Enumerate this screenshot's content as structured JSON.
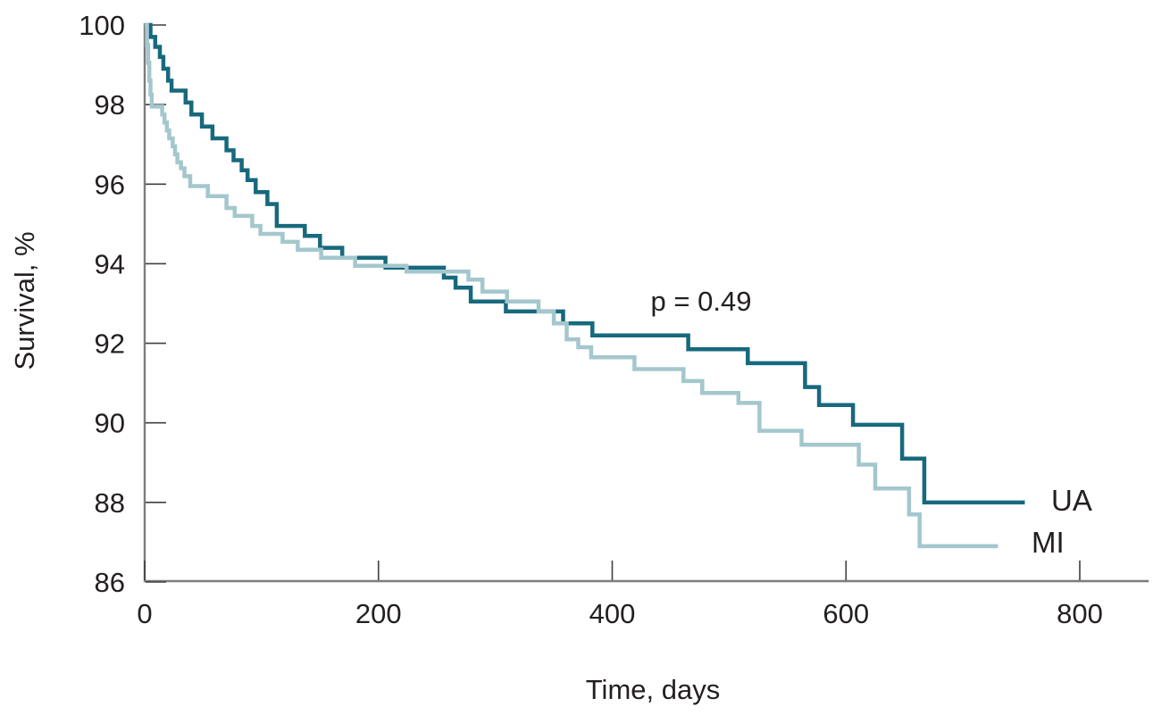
{
  "figure": {
    "background": "#ffffff",
    "text_color": "#231f20",
    "axis_color": "#7d7d7d",
    "tick_color": "#3f3f3f"
  },
  "chart_data": {
    "type": "line",
    "subtype": "kaplan-meier-step",
    "title": "",
    "xlabel": "Time, days",
    "ylabel": "Survival, %",
    "xlim": [
      0,
      859
    ],
    "ylim": [
      86,
      100
    ],
    "x_ticks": [
      0,
      200,
      400,
      600,
      800
    ],
    "y_ticks": [
      100,
      98,
      96,
      94,
      92,
      90,
      88,
      86
    ],
    "grid": false,
    "legend_position": "right-end-of-lines",
    "annotation": {
      "text": "p = 0.49",
      "x_day": 476,
      "y_pct": 93.0
    },
    "series": [
      {
        "name": "UA",
        "color": "#17697d",
        "final_value": 88.0,
        "points": [
          [
            0,
            100
          ],
          [
            5,
            99.7
          ],
          [
            9,
            99.45
          ],
          [
            13,
            99.2
          ],
          [
            16,
            98.9
          ],
          [
            20,
            98.6
          ],
          [
            23,
            98.35
          ],
          [
            35,
            98.05
          ],
          [
            40,
            97.75
          ],
          [
            49,
            97.45
          ],
          [
            58,
            97.15
          ],
          [
            70,
            96.85
          ],
          [
            76,
            96.6
          ],
          [
            83,
            96.35
          ],
          [
            88,
            96.1
          ],
          [
            95,
            95.8
          ],
          [
            105,
            95.5
          ],
          [
            113,
            94.95
          ],
          [
            137,
            94.7
          ],
          [
            150,
            94.4
          ],
          [
            169,
            94.15
          ],
          [
            206,
            93.9
          ],
          [
            256,
            93.65
          ],
          [
            266,
            93.4
          ],
          [
            279,
            93.05
          ],
          [
            309,
            92.8
          ],
          [
            358,
            92.5
          ],
          [
            383,
            92.2
          ],
          [
            465,
            91.85
          ],
          [
            516,
            91.5
          ],
          [
            565,
            90.9
          ],
          [
            577,
            90.45
          ],
          [
            606,
            89.95
          ],
          [
            648,
            89.1
          ],
          [
            667,
            88.0
          ],
          [
            753,
            88.0
          ]
        ]
      },
      {
        "name": "MI",
        "color": "#a3c7cd",
        "final_value": 86.9,
        "points": [
          [
            0,
            100
          ],
          [
            2,
            99.5
          ],
          [
            3,
            99.05
          ],
          [
            4,
            98.6
          ],
          [
            5,
            98.25
          ],
          [
            6,
            97.95
          ],
          [
            15,
            97.75
          ],
          [
            17,
            97.55
          ],
          [
            19,
            97.35
          ],
          [
            21,
            97.15
          ],
          [
            24,
            96.95
          ],
          [
            26,
            96.75
          ],
          [
            28,
            96.55
          ],
          [
            31,
            96.4
          ],
          [
            34,
            96.2
          ],
          [
            39,
            95.95
          ],
          [
            54,
            95.7
          ],
          [
            70,
            95.4
          ],
          [
            77,
            95.2
          ],
          [
            92,
            94.95
          ],
          [
            99,
            94.75
          ],
          [
            118,
            94.55
          ],
          [
            131,
            94.35
          ],
          [
            151,
            94.15
          ],
          [
            180,
            93.95
          ],
          [
            224,
            93.8
          ],
          [
            277,
            93.6
          ],
          [
            289,
            93.3
          ],
          [
            310,
            93.05
          ],
          [
            337,
            92.8
          ],
          [
            350,
            92.5
          ],
          [
            361,
            92.1
          ],
          [
            371,
            91.9
          ],
          [
            382,
            91.65
          ],
          [
            419,
            91.35
          ],
          [
            461,
            91.05
          ],
          [
            477,
            90.75
          ],
          [
            508,
            90.5
          ],
          [
            526,
            89.8
          ],
          [
            562,
            89.45
          ],
          [
            611,
            88.95
          ],
          [
            625,
            88.35
          ],
          [
            654,
            87.7
          ],
          [
            663,
            86.9
          ],
          [
            730,
            86.9
          ]
        ]
      }
    ]
  }
}
